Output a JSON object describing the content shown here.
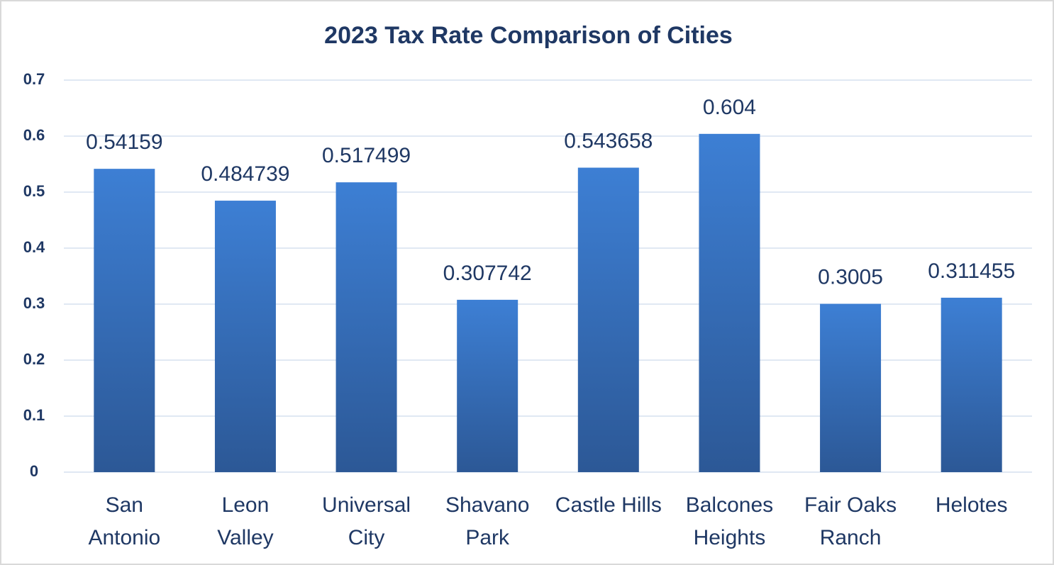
{
  "chart_data": {
    "type": "bar",
    "title": "2023 Tax Rate Comparison of Cities",
    "categories": [
      "San\nAntonio",
      "Leon\nValley",
      "Universal\nCity",
      "Shavano\nPark",
      "Castle Hills",
      "Balcones\nHeights",
      "Fair Oaks\nRanch",
      "Helotes"
    ],
    "values": [
      0.54159,
      0.484739,
      0.517499,
      0.307742,
      0.543658,
      0.604,
      0.3005,
      0.311455
    ],
    "color": "#3d7fd4",
    "ylim": [
      0,
      0.7
    ],
    "yticks": [
      0,
      0.1,
      0.2,
      0.3,
      0.4,
      0.5,
      0.6,
      0.7
    ],
    "grid": true
  }
}
